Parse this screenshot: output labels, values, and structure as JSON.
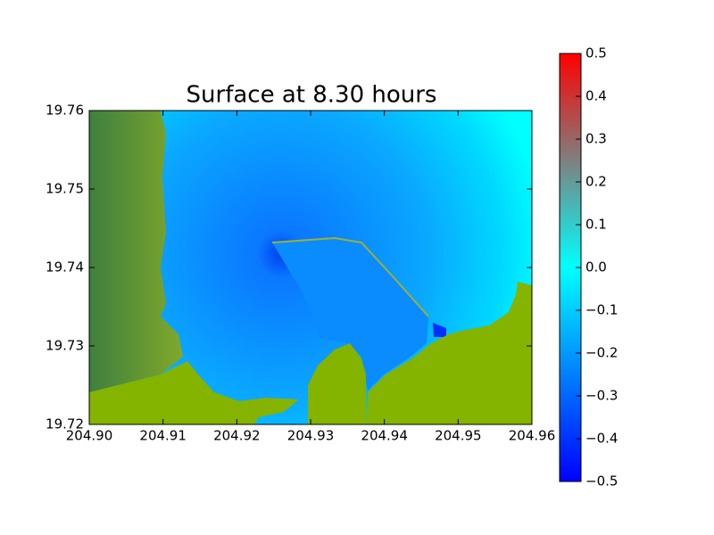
{
  "chart_data": {
    "type": "heatmap",
    "title": "Surface at 8.30 hours",
    "xlim": [
      204.9,
      204.96
    ],
    "xticks": [
      {
        "value": 204.9,
        "label": "204.90"
      },
      {
        "value": 204.91,
        "label": "204.91"
      },
      {
        "value": 204.92,
        "label": "204.92"
      },
      {
        "value": 204.93,
        "label": "204.93"
      },
      {
        "value": 204.94,
        "label": "204.94"
      },
      {
        "value": 204.95,
        "label": "204.95"
      },
      {
        "value": 204.96,
        "label": "204.96"
      }
    ],
    "ylim": [
      19.72,
      19.76
    ],
    "yticks": [
      19.72,
      19.73,
      19.74,
      19.75,
      19.76
    ],
    "colorbar": {
      "lim": [
        -0.5,
        0.5
      ],
      "colors": [
        "#0000ff",
        "#00ffff",
        "#ff0000"
      ],
      "ticks": [
        {
          "value": -0.5,
          "label": "−0.5"
        },
        {
          "value": -0.4,
          "label": "−0.4"
        },
        {
          "value": -0.3,
          "label": "−0.3"
        },
        {
          "value": -0.2,
          "label": "−0.2"
        },
        {
          "value": -0.1,
          "label": "−0.1"
        },
        {
          "value": 0,
          "label": "0.0"
        },
        0.1,
        0.2,
        0.3,
        0.4,
        0.5
      ]
    }
  }
}
